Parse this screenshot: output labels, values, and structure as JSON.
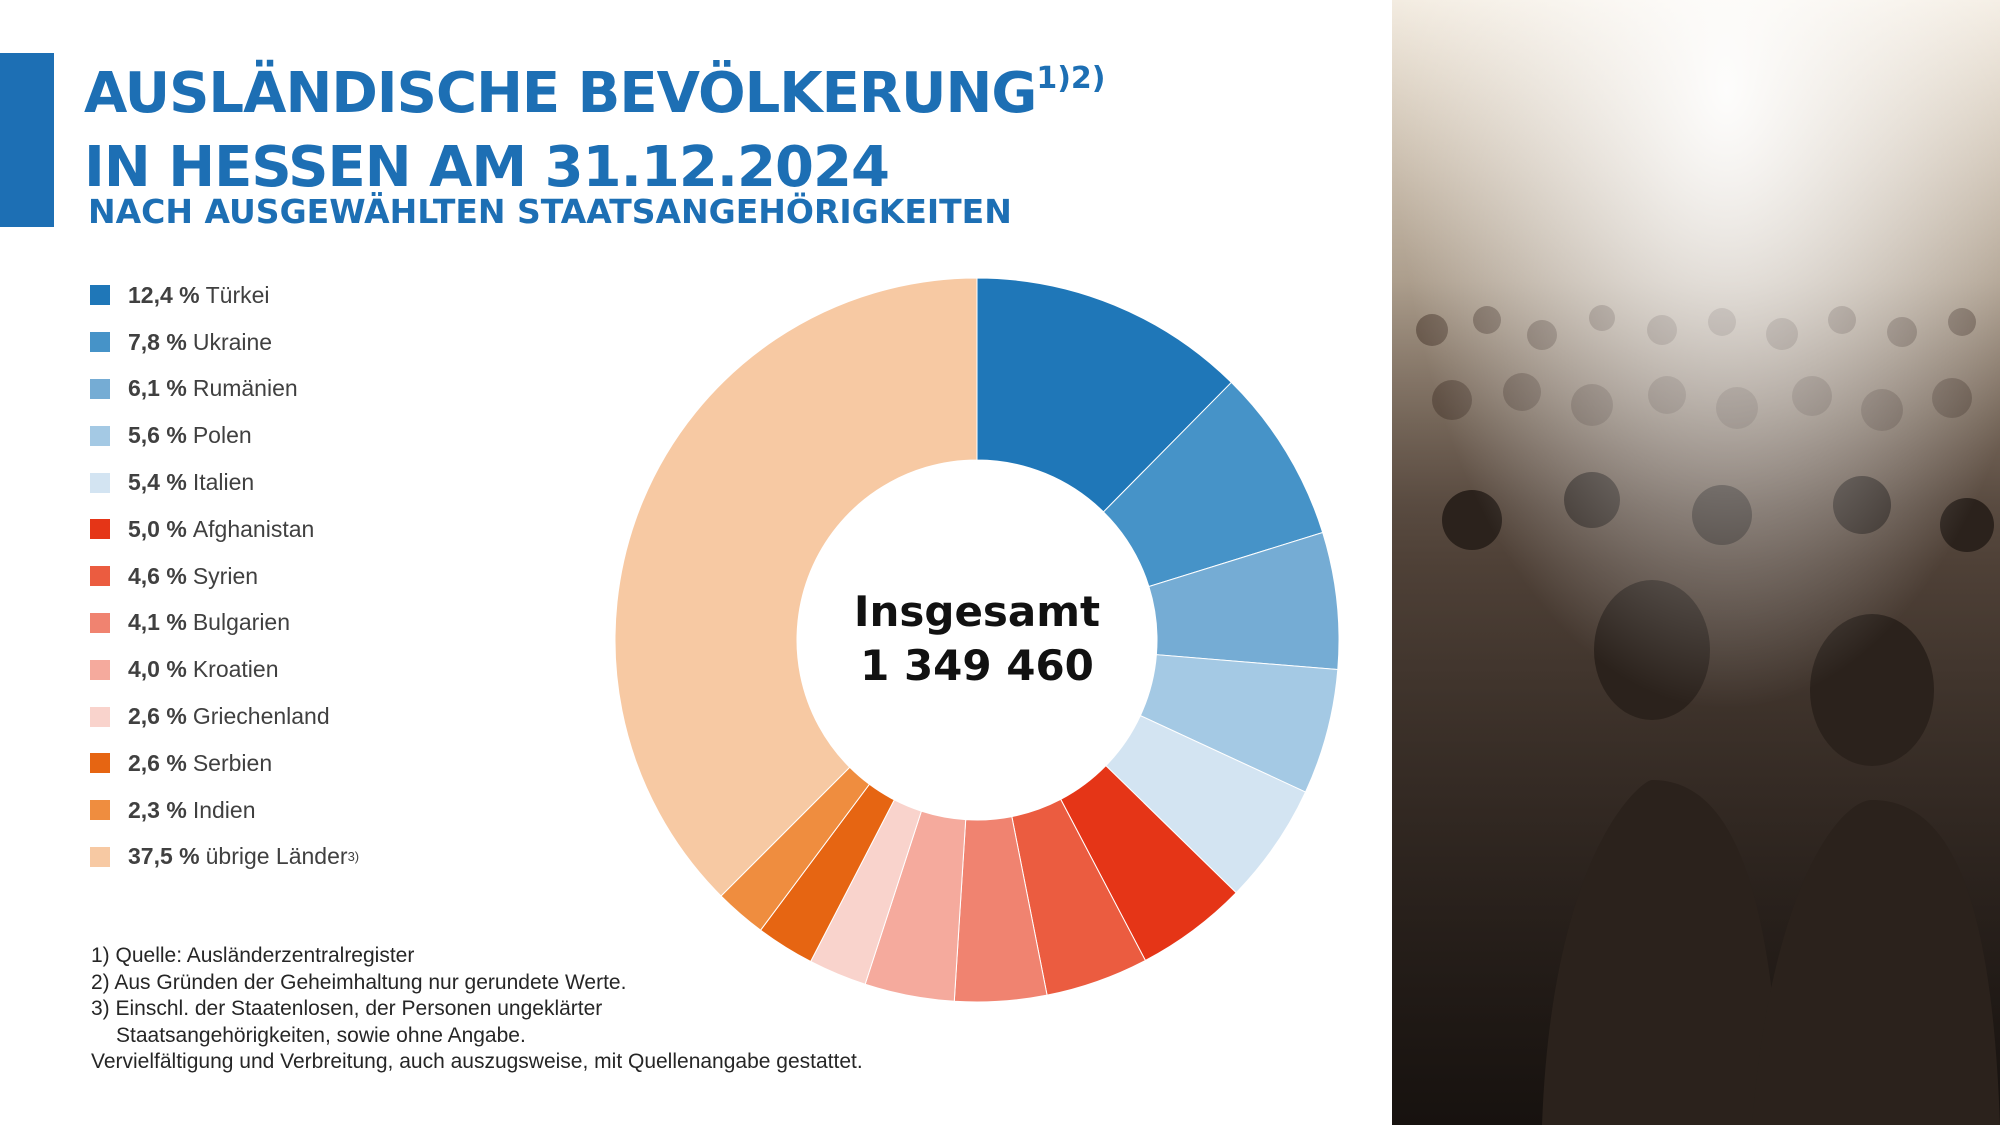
{
  "title": {
    "line1": "AUSLÄNDISCHE BEVÖLKERUNG",
    "line1_sup": "1)2)",
    "line2": "IN HESSEN AM 31.12.2024",
    "subtitle": "NACH AUSGEWÄHLTEN STAATSANGEHÖRIGKEITEN"
  },
  "colors": {
    "accent": "#1d6fb4"
  },
  "chart_data": {
    "type": "pie",
    "style": "donut",
    "center_label": "Insgesamt",
    "total": "1 349 460",
    "legend_position": "left",
    "slices": [
      {
        "label": "Türkei",
        "pct": "12,4 %",
        "value": 12.4,
        "color": "#1f77b8"
      },
      {
        "label": "Ukraine",
        "pct": "7,8 %",
        "value": 7.8,
        "color": "#4693c8"
      },
      {
        "label": "Rumänien",
        "pct": "6,1 %",
        "value": 6.1,
        "color": "#75acd4"
      },
      {
        "label": "Polen",
        "pct": "5,6 %",
        "value": 5.6,
        "color": "#a4c9e4"
      },
      {
        "label": "Italien",
        "pct": "5,4 %",
        "value": 5.4,
        "color": "#d3e4f2"
      },
      {
        "label": "Afghanistan",
        "pct": "5,0 %",
        "value": 5.0,
        "color": "#e53517"
      },
      {
        "label": "Syrien",
        "pct": "4,6 %",
        "value": 4.6,
        "color": "#eb5c40"
      },
      {
        "label": "Bulgarien",
        "pct": "4,1 %",
        "value": 4.1,
        "color": "#f08370"
      },
      {
        "label": "Kroatien",
        "pct": "4,0 %",
        "value": 4.0,
        "color": "#f5aa9d"
      },
      {
        "label": "Griechenland",
        "pct": "2,6 %",
        "value": 2.6,
        "color": "#f9d3cc"
      },
      {
        "label": "Serbien",
        "pct": "2,6 %",
        "value": 2.6,
        "color": "#e66512"
      },
      {
        "label": "Indien",
        "pct": "2,3 %",
        "value": 2.3,
        "color": "#ef8d3f"
      },
      {
        "label": "übrige Länder",
        "label_sup": "3)",
        "pct": "37,5 %",
        "value": 37.5,
        "color": "#f7c9a3"
      }
    ]
  },
  "footnotes": {
    "f1": "1) Quelle: Ausländerzentralregister",
    "f2": "2) Aus Gründen der Geheimhaltung nur gerundete Werte.",
    "f3a": "3) Einschl. der Staatenlosen, der Personen ungeklärter",
    "f3b": "Staatsangehörigkeiten, sowie ohne Angabe.",
    "f4": "Vervielfältigung und Verbreitung, auch auszugsweise, mit Quellenangabe gestattet."
  }
}
